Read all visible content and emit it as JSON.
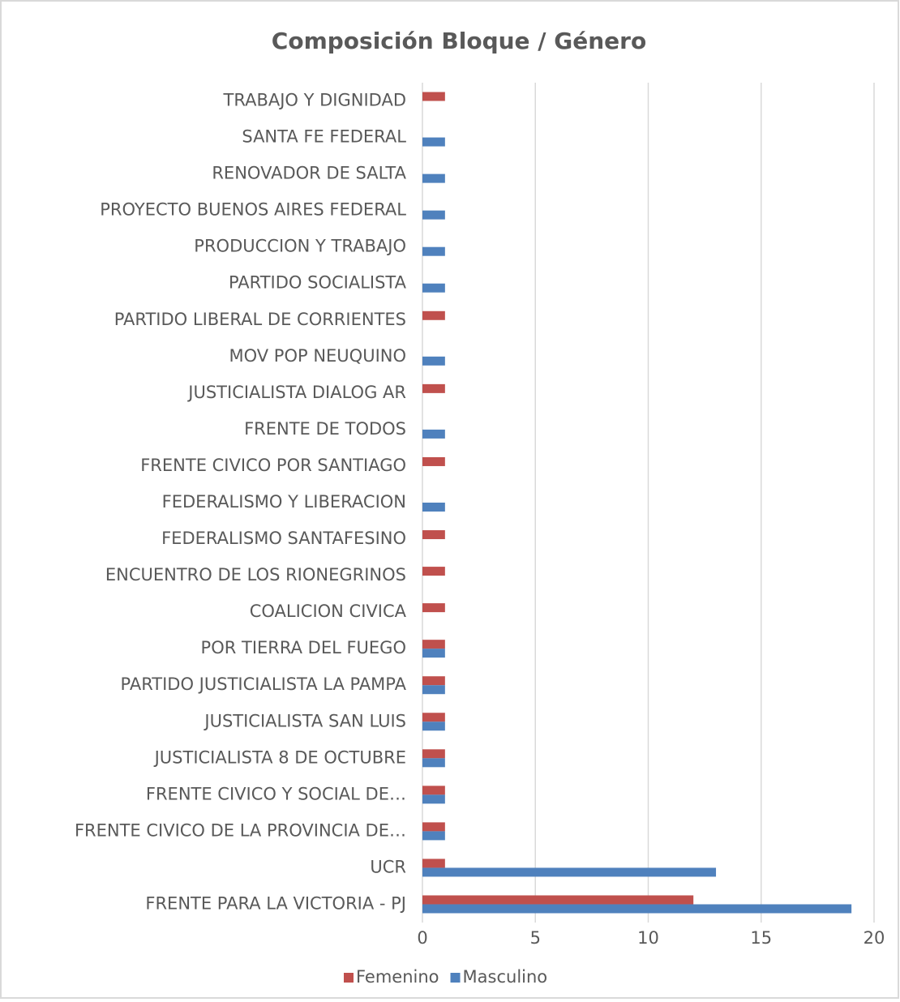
{
  "chart_data": {
    "type": "bar",
    "orientation": "horizontal",
    "title": "Composición Bloque / Género",
    "categories": [
      "TRABAJO Y DIGNIDAD",
      "SANTA FE FEDERAL",
      "RENOVADOR DE SALTA",
      "PROYECTO BUENOS AIRES FEDERAL",
      "PRODUCCION Y TRABAJO",
      "PARTIDO SOCIALISTA",
      "PARTIDO LIBERAL DE CORRIENTES",
      "MOV POP NEUQUINO",
      "JUSTICIALISTA DIALOG AR",
      "FRENTE DE TODOS",
      "FRENTE CIVICO POR SANTIAGO",
      "FEDERALISMO Y LIBERACION",
      "FEDERALISMO SANTAFESINO",
      "ENCUENTRO DE LOS RIONEGRINOS",
      "COALICION CIVICA",
      "POR TIERRA DEL FUEGO",
      "PARTIDO JUSTICIALISTA LA PAMPA",
      "JUSTICIALISTA SAN LUIS",
      "JUSTICIALISTA 8 DE OCTUBRE",
      "FRENTE CIVICO Y SOCIAL DE…",
      "FRENTE CIVICO DE LA  PROVINCIA DE…",
      "UCR",
      "FRENTE PARA LA VICTORIA - PJ"
    ],
    "series": [
      {
        "name": "Femenino",
        "color": "#c0504d",
        "values": [
          1,
          0,
          0,
          0,
          0,
          0,
          1,
          0,
          1,
          0,
          1,
          0,
          1,
          1,
          1,
          1,
          1,
          1,
          1,
          1,
          1,
          1,
          12
        ]
      },
      {
        "name": "Masculino",
        "color": "#4f81bd",
        "values": [
          0,
          1,
          1,
          1,
          1,
          1,
          0,
          1,
          0,
          1,
          0,
          1,
          0,
          0,
          0,
          1,
          1,
          1,
          1,
          1,
          1,
          13,
          19
        ]
      }
    ],
    "xlim": [
      0,
      20
    ],
    "xticks": [
      0,
      5,
      10,
      15,
      20
    ],
    "grid": true,
    "legend": "bottom"
  }
}
